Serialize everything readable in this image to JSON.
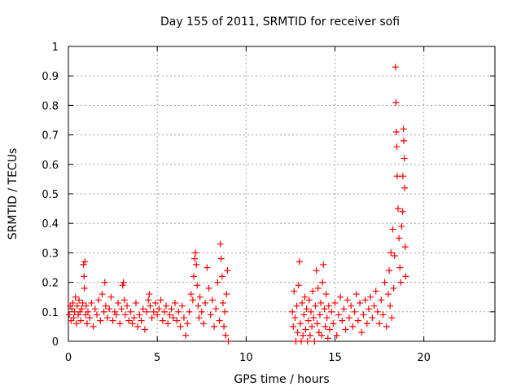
{
  "colors": {
    "points": "#ff0000",
    "grid": "#a0a0a0",
    "axis": "#000000"
  },
  "chart_data": {
    "type": "scatter",
    "title": "Day 155 of 2011, SRMTID for receiver sofi",
    "xlabel": "GPS time / hours",
    "ylabel": "SRMTID / TECUs",
    "xlim": [
      0,
      24
    ],
    "ylim": [
      0,
      1
    ],
    "xticks": [
      0,
      5,
      10,
      15,
      20
    ],
    "xtick_labels": [
      "0",
      "5",
      "10",
      "15",
      "20"
    ],
    "yticks": [
      0,
      0.1,
      0.2,
      0.3,
      0.4,
      0.5,
      0.6,
      0.7,
      0.8,
      0.9,
      1
    ],
    "ytick_labels": [
      "0",
      "0.1",
      "0.2",
      "0.3",
      "0.4",
      "0.5",
      "0.6",
      "0.7",
      "0.8",
      "0.9",
      "1"
    ],
    "grid": true,
    "marker": "+",
    "series": [
      {
        "name": "SRMTID",
        "points": [
          [
            0.05,
            0.09
          ],
          [
            0.1,
            0.12
          ],
          [
            0.15,
            0.07
          ],
          [
            0.2,
            0.11
          ],
          [
            0.25,
            0.13
          ],
          [
            0.3,
            0.08
          ],
          [
            0.35,
            0.1
          ],
          [
            0.4,
            0.15
          ],
          [
            0.45,
            0.06
          ],
          [
            0.5,
            0.12
          ],
          [
            0.55,
            0.09
          ],
          [
            0.6,
            0.14
          ],
          [
            0.65,
            0.1
          ],
          [
            0.7,
            0.07
          ],
          [
            0.75,
            0.11
          ],
          [
            0.8,
            0.13
          ],
          [
            0.85,
            0.26
          ],
          [
            0.88,
            0.22
          ],
          [
            0.9,
            0.18
          ],
          [
            0.93,
            0.27
          ],
          [
            0.97,
            0.09
          ],
          [
            1.0,
            0.12
          ],
          [
            1.05,
            0.06
          ],
          [
            1.1,
            0.1
          ],
          [
            1.2,
            0.08
          ],
          [
            1.3,
            0.13
          ],
          [
            1.4,
            0.05
          ],
          [
            1.5,
            0.11
          ],
          [
            1.6,
            0.09
          ],
          [
            1.7,
            0.14
          ],
          [
            1.8,
            0.07
          ],
          [
            1.9,
            0.16
          ],
          [
            2.0,
            0.1
          ],
          [
            2.05,
            0.2
          ],
          [
            2.1,
            0.12
          ],
          [
            2.2,
            0.08
          ],
          [
            2.3,
            0.11
          ],
          [
            2.4,
            0.15
          ],
          [
            2.5,
            0.07
          ],
          [
            2.6,
            0.1
          ],
          [
            2.7,
            0.09
          ],
          [
            2.8,
            0.13
          ],
          [
            2.9,
            0.06
          ],
          [
            3.0,
            0.11
          ],
          [
            3.05,
            0.19
          ],
          [
            3.1,
            0.2
          ],
          [
            3.15,
            0.14
          ],
          [
            3.2,
            0.09
          ],
          [
            3.3,
            0.12
          ],
          [
            3.4,
            0.07
          ],
          [
            3.5,
            0.1
          ],
          [
            3.6,
            0.06
          ],
          [
            3.7,
            0.08
          ],
          [
            3.8,
            0.13
          ],
          [
            3.9,
            0.05
          ],
          [
            4.0,
            0.09
          ],
          [
            4.1,
            0.07
          ],
          [
            4.2,
            0.11
          ],
          [
            4.3,
            0.04
          ],
          [
            4.4,
            0.1
          ],
          [
            4.5,
            0.14
          ],
          [
            4.55,
            0.16
          ],
          [
            4.6,
            0.12
          ],
          [
            4.7,
            0.08
          ],
          [
            4.8,
            0.1
          ],
          [
            4.9,
            0.13
          ],
          [
            5.0,
            0.09
          ],
          [
            5.1,
            0.11
          ],
          [
            5.2,
            0.14
          ],
          [
            5.3,
            0.07
          ],
          [
            5.4,
            0.1
          ],
          [
            5.5,
            0.12
          ],
          [
            5.6,
            0.06
          ],
          [
            5.7,
            0.09
          ],
          [
            5.8,
            0.11
          ],
          [
            5.9,
            0.08
          ],
          [
            6.0,
            0.13
          ],
          [
            6.1,
            0.07
          ],
          [
            6.2,
            0.1
          ],
          [
            6.3,
            0.05
          ],
          [
            6.4,
            0.12
          ],
          [
            6.5,
            0.08
          ],
          [
            6.6,
            0.02
          ],
          [
            6.7,
            0.06
          ],
          [
            6.8,
            0.1
          ],
          [
            6.9,
            0.16
          ],
          [
            7.0,
            0.14
          ],
          [
            7.05,
            0.22
          ],
          [
            7.1,
            0.28
          ],
          [
            7.15,
            0.3
          ],
          [
            7.2,
            0.26
          ],
          [
            7.25,
            0.19
          ],
          [
            7.3,
            0.12
          ],
          [
            7.35,
            0.08
          ],
          [
            7.4,
            0.15
          ],
          [
            7.5,
            0.1
          ],
          [
            7.6,
            0.06
          ],
          [
            7.7,
            0.13
          ],
          [
            7.8,
            0.25
          ],
          [
            7.9,
            0.18
          ],
          [
            8.0,
            0.09
          ],
          [
            8.1,
            0.14
          ],
          [
            8.2,
            0.05
          ],
          [
            8.3,
            0.11
          ],
          [
            8.4,
            0.2
          ],
          [
            8.5,
            0.07
          ],
          [
            8.55,
            0.33
          ],
          [
            8.6,
            0.28
          ],
          [
            8.65,
            0.22
          ],
          [
            8.7,
            0.13
          ],
          [
            8.75,
            0.05
          ],
          [
            8.8,
            0.1
          ],
          [
            8.85,
            0.02
          ],
          [
            8.9,
            0.16
          ],
          [
            8.95,
            0.24
          ],
          [
            9.0,
            0.0
          ],
          [
            12.6,
            0.1
          ],
          [
            12.65,
            0.05
          ],
          [
            12.7,
            0.17
          ],
          [
            12.75,
            0.08
          ],
          [
            12.8,
            0.0
          ],
          [
            12.85,
            0.12
          ],
          [
            12.9,
            0.03
          ],
          [
            12.95,
            0.19
          ],
          [
            13.0,
            0.27
          ],
          [
            13.05,
            0.06
          ],
          [
            13.1,
            0.0
          ],
          [
            13.15,
            0.13
          ],
          [
            13.2,
            0.02
          ],
          [
            13.25,
            0.09
          ],
          [
            13.3,
            0.15
          ],
          [
            13.35,
            0.04
          ],
          [
            13.4,
            0.11
          ],
          [
            13.45,
            0.0
          ],
          [
            13.5,
            0.07
          ],
          [
            13.55,
            0.14
          ],
          [
            13.6,
            0.02
          ],
          [
            13.65,
            0.1
          ],
          [
            13.7,
            0.05
          ],
          [
            13.75,
            0.17
          ],
          [
            13.8,
            0.08
          ],
          [
            13.85,
            0.0
          ],
          [
            13.9,
            0.12
          ],
          [
            13.95,
            0.24
          ],
          [
            14.0,
            0.06
          ],
          [
            14.05,
            0.18
          ],
          [
            14.1,
            0.03
          ],
          [
            14.15,
            0.09
          ],
          [
            14.2,
            0.13
          ],
          [
            14.25,
            0.02
          ],
          [
            14.3,
            0.2
          ],
          [
            14.35,
            0.26
          ],
          [
            14.4,
            0.11
          ],
          [
            14.45,
            0.05
          ],
          [
            14.5,
            0.16
          ],
          [
            14.55,
            0.08
          ],
          [
            14.6,
            0.01
          ],
          [
            14.65,
            0.12
          ],
          [
            14.7,
            0.04
          ],
          [
            14.8,
            0.1
          ],
          [
            14.9,
            0.06
          ],
          [
            15.0,
            0.13
          ],
          [
            15.1,
            0.02
          ],
          [
            15.2,
            0.09
          ],
          [
            15.3,
            0.15
          ],
          [
            15.4,
            0.07
          ],
          [
            15.5,
            0.11
          ],
          [
            15.6,
            0.04
          ],
          [
            15.7,
            0.14
          ],
          [
            15.8,
            0.08
          ],
          [
            15.9,
            0.12
          ],
          [
            16.0,
            0.05
          ],
          [
            16.1,
            0.1
          ],
          [
            16.2,
            0.16
          ],
          [
            16.3,
            0.07
          ],
          [
            16.4,
            0.13
          ],
          [
            16.5,
            0.03
          ],
          [
            16.6,
            0.09
          ],
          [
            16.7,
            0.14
          ],
          [
            16.8,
            0.06
          ],
          [
            16.9,
            0.11
          ],
          [
            17.0,
            0.15
          ],
          [
            17.1,
            0.08
          ],
          [
            17.2,
            0.12
          ],
          [
            17.3,
            0.17
          ],
          [
            17.4,
            0.1
          ],
          [
            17.5,
            0.06
          ],
          [
            17.6,
            0.14
          ],
          [
            17.7,
            0.09
          ],
          [
            17.8,
            0.2
          ],
          [
            17.9,
            0.05
          ],
          [
            18.0,
            0.16
          ],
          [
            18.05,
            0.24
          ],
          [
            18.1,
            0.12
          ],
          [
            18.15,
            0.3
          ],
          [
            18.2,
            0.08
          ],
          [
            18.25,
            0.38
          ],
          [
            18.3,
            0.18
          ],
          [
            18.35,
            0.29
          ],
          [
            18.4,
            0.93
          ],
          [
            18.43,
            0.81
          ],
          [
            18.45,
            0.71
          ],
          [
            18.48,
            0.66
          ],
          [
            18.5,
            0.56
          ],
          [
            18.55,
            0.45
          ],
          [
            18.6,
            0.35
          ],
          [
            18.65,
            0.25
          ],
          [
            18.7,
            0.2
          ],
          [
            18.75,
            0.39
          ],
          [
            18.8,
            0.44
          ],
          [
            18.82,
            0.56
          ],
          [
            18.85,
            0.72
          ],
          [
            18.87,
            0.68
          ],
          [
            18.9,
            0.62
          ],
          [
            18.92,
            0.52
          ],
          [
            18.95,
            0.32
          ],
          [
            18.98,
            0.22
          ]
        ]
      }
    ]
  }
}
